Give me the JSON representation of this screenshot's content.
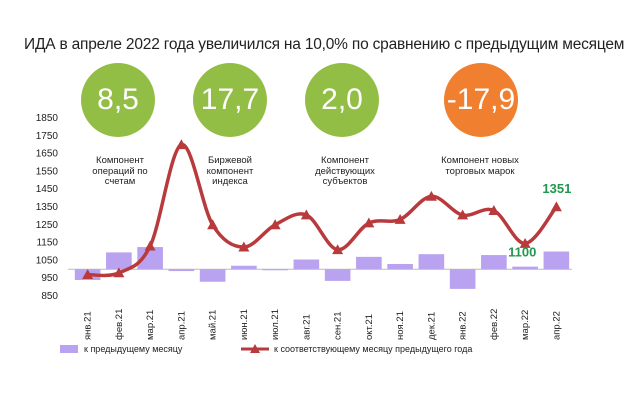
{
  "title": "ИДА в апреле 2022 года увеличился на 10,0% по сравнению с предыдущим месяцем",
  "components": [
    {
      "value": "8,5",
      "label": "Компонент операций по счетам",
      "color": "#93be46"
    },
    {
      "value": "17,7",
      "label": "Биржевой компонент индекса",
      "color": "#93be46"
    },
    {
      "value": "2,0",
      "label": "Компонент действующих субъектов",
      "color": "#93be46"
    },
    {
      "value": "-17,9",
      "label": "Компонент новых торговых марок",
      "color": "#f07f2f"
    }
  ],
  "chart_data": {
    "type": "bar+line",
    "categories": [
      "янв.21",
      "фев.21",
      "мар.21",
      "апр.21",
      "май.21",
      "июн.21",
      "июл.21",
      "авг.21",
      "сен.21",
      "окт.21",
      "ноя.21",
      "дек.21",
      "янв.22",
      "фев.22",
      "мар.22",
      "апр.22"
    ],
    "ylim": [
      850,
      1850
    ],
    "yticks": [
      "1850",
      "1750",
      "1650",
      "1550",
      "1450",
      "1350",
      "1250",
      "1150",
      "1050",
      "950",
      "850"
    ],
    "baseline": 1000,
    "series": [
      {
        "name": "к предыдущему месяцу",
        "type": "bar",
        "color": "#b9a3f0",
        "values": [
          940,
          1095,
          1125,
          990,
          930,
          1020,
          998,
          1055,
          935,
          1070,
          1030,
          1085,
          890,
          1080,
          1015,
          1100
        ]
      },
      {
        "name": "к соответствующему месяцу предыдущего года",
        "type": "line",
        "color": "#b83a3c",
        "values": [
          970,
          980,
          1130,
          1700,
          1250,
          1125,
          1250,
          1305,
          1110,
          1260,
          1280,
          1410,
          1305,
          1330,
          1145,
          1351
        ]
      }
    ],
    "annotations": [
      {
        "text": "1351",
        "color": "#1f9a4c"
      },
      {
        "text": "1100",
        "color": "#1f9a4c"
      }
    ]
  }
}
